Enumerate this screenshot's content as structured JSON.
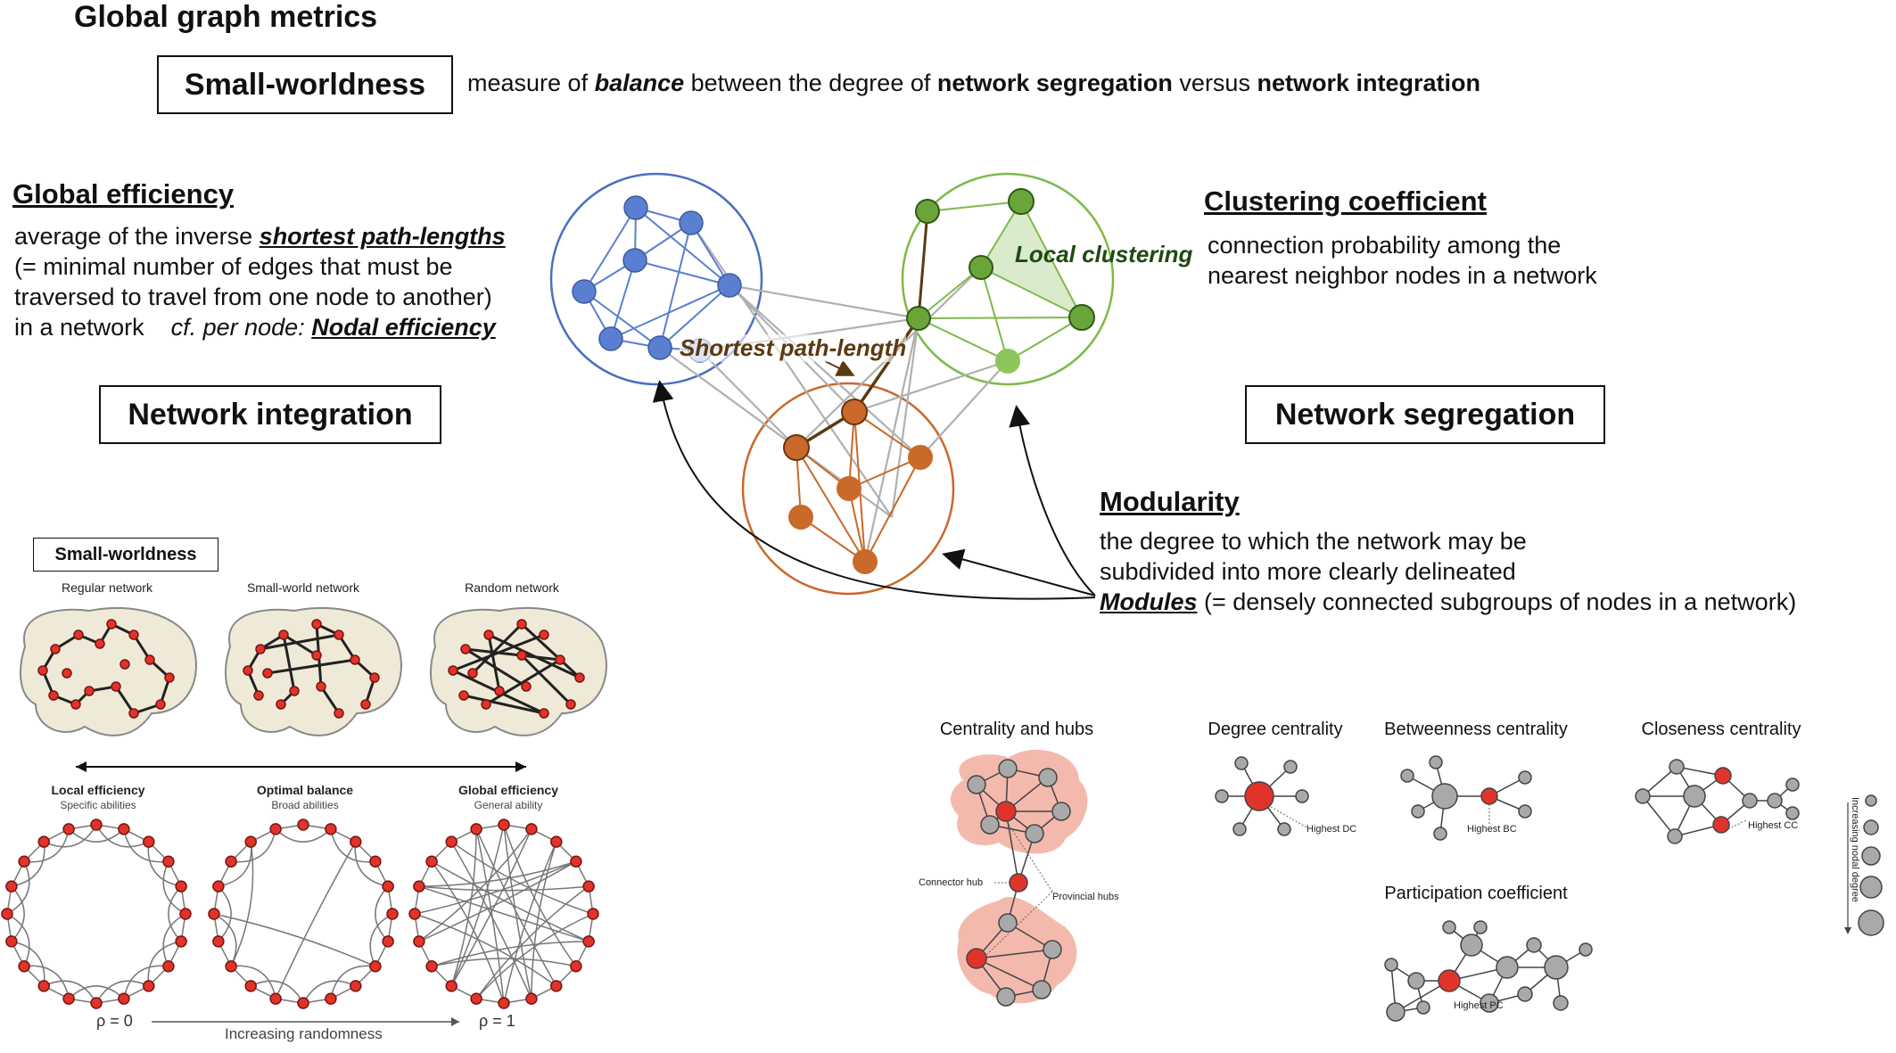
{
  "title": "Global graph metrics",
  "small_worldness": {
    "box_label": "Small-worldness",
    "desc_1": "measure of ",
    "desc_balance": "balance",
    "desc_2": " between the degree of ",
    "desc_segregation": "network segregation",
    "desc_3": " versus ",
    "desc_integration": "network integration"
  },
  "global_efficiency": {
    "heading": "Global efficiency",
    "line1_a": "average of the inverse ",
    "line1_b": "shortest path-lengths",
    "line2": "(= minimal number of edges that must be",
    "line3": "traversed to travel from one node to another)",
    "line4_a": "in a network",
    "line4_b": "cf. per node: ",
    "line4_c": "Nodal efficiency"
  },
  "network_integration_label": "Network integration",
  "network_segregation_label": "Network segregation",
  "clustering": {
    "heading": "Clustering coefficient",
    "line1": "connection probability among the",
    "line2": "nearest neighbor nodes in a network"
  },
  "diagram": {
    "local_clustering": "Local clustering",
    "shortest_path": "Shortest path-length"
  },
  "modularity": {
    "heading": "Modularity",
    "line1": "the degree to which the network may be",
    "line2": "subdivided into more clearly delineated",
    "line3_a": "Modules",
    "line3_b": " (= densely connected subgroups of nodes in a network)"
  },
  "sw_panel": {
    "box_label": "Small-worldness",
    "regular": "Regular network",
    "smallworld": "Small-world network",
    "random": "Random network",
    "local_eff": "Local efficiency",
    "local_sub": "Specific abilities",
    "optimal": "Optimal balance",
    "optimal_sub": "Broad abilities",
    "global_eff": "Global efficiency",
    "global_sub": "General ability",
    "p0": "ρ = 0",
    "increasing": "Increasing randomness",
    "p1": "ρ = 1"
  },
  "centrality": {
    "hubs_title": "Centrality and hubs",
    "connector_hub": "Connector hub",
    "provincial_hubs": "Provincial hubs",
    "degree_title": "Degree centrality",
    "highest_dc": "Highest DC",
    "betweenness_title": "Betweenness centrality",
    "highest_bc": "Highest BC",
    "closeness_title": "Closeness centrality",
    "highest_cc": "Highest CC",
    "participation_title": "Participation coefficient",
    "highest_pc": "Highest PC",
    "nodal_degree": "Increasing nodal degree"
  },
  "colors": {
    "blue": "#4a6fc1",
    "blue_fill": "#5b7fd0",
    "green": "#6aa53a",
    "green_fill": "#5e9a2e",
    "orange": "#c9692a",
    "orange_fill": "#c9692a",
    "red_node": "#e0342a",
    "grey_node": "#a9a9a9",
    "hub_blob": "#f4b9ad"
  }
}
